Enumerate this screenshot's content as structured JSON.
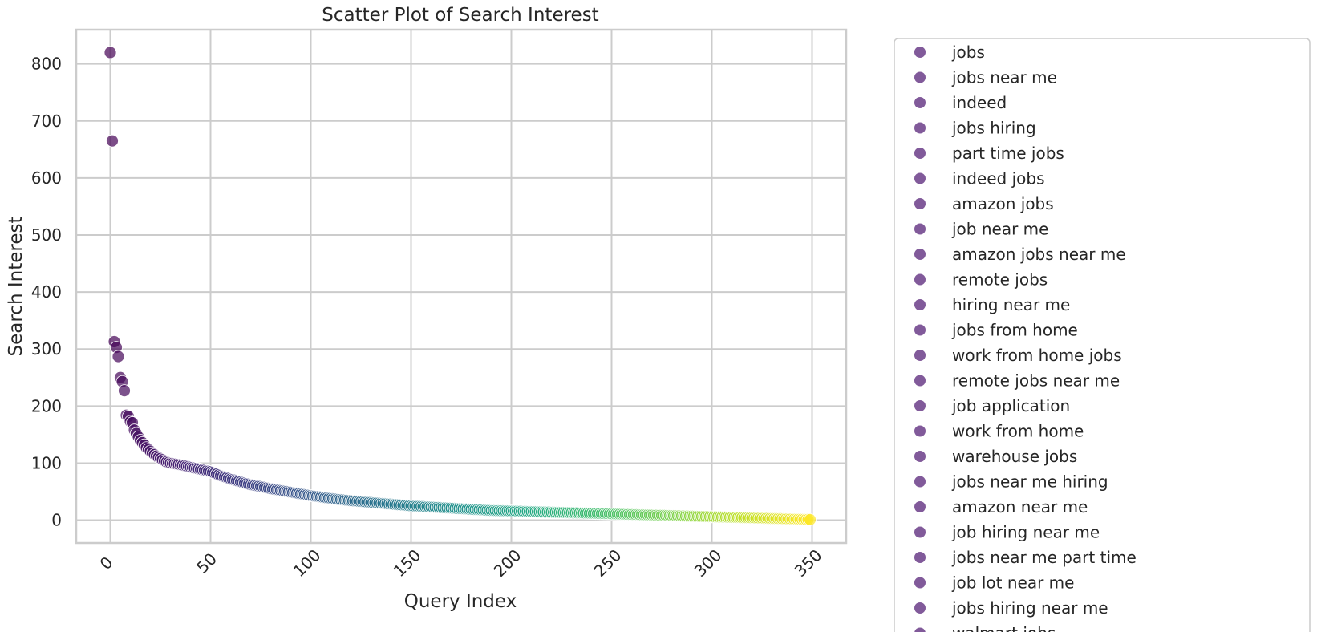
{
  "chart_data": {
    "type": "scatter",
    "title": "Scatter Plot of Search Interest",
    "xlabel": "Query Index",
    "ylabel": "Search Interest",
    "xlim": [
      -17,
      367
    ],
    "ylim": [
      -40,
      860
    ],
    "xticks": [
      0,
      50,
      100,
      150,
      200,
      250,
      300,
      350
    ],
    "yticks": [
      0,
      100,
      200,
      300,
      400,
      500,
      600,
      700,
      800
    ],
    "grid": true,
    "colormap": "viridis",
    "point_alpha": 0.7,
    "n_points": 350,
    "anchor_points": [
      [
        0,
        820
      ],
      [
        1,
        665
      ],
      [
        2,
        313
      ],
      [
        3,
        303
      ],
      [
        4,
        287
      ],
      [
        5,
        250
      ],
      [
        6,
        243
      ],
      [
        7,
        227
      ],
      [
        8,
        184
      ],
      [
        9,
        182
      ],
      [
        10,
        173
      ],
      [
        11,
        171
      ],
      [
        12,
        158
      ],
      [
        13,
        152
      ],
      [
        14,
        146
      ],
      [
        15,
        140
      ],
      [
        16,
        136
      ],
      [
        17,
        132
      ],
      [
        18,
        127
      ],
      [
        19,
        124
      ],
      [
        20,
        121
      ],
      [
        22,
        115
      ],
      [
        24,
        110
      ],
      [
        26,
        106
      ],
      [
        28,
        102
      ],
      [
        30,
        100
      ],
      [
        35,
        97
      ],
      [
        40,
        93
      ],
      [
        45,
        89
      ],
      [
        50,
        85
      ],
      [
        55,
        78
      ],
      [
        60,
        72
      ],
      [
        65,
        67
      ],
      [
        70,
        62
      ],
      [
        75,
        59
      ],
      [
        80,
        55
      ],
      [
        85,
        52
      ],
      [
        90,
        49
      ],
      [
        95,
        46
      ],
      [
        100,
        43
      ],
      [
        110,
        38
      ],
      [
        120,
        34
      ],
      [
        130,
        31
      ],
      [
        140,
        28
      ],
      [
        150,
        25
      ],
      [
        160,
        23
      ],
      [
        170,
        21
      ],
      [
        180,
        19
      ],
      [
        190,
        17
      ],
      [
        200,
        16
      ],
      [
        210,
        15
      ],
      [
        220,
        14
      ],
      [
        230,
        13
      ],
      [
        240,
        12
      ],
      [
        250,
        11
      ],
      [
        260,
        10
      ],
      [
        270,
        9
      ],
      [
        280,
        8
      ],
      [
        290,
        7
      ],
      [
        300,
        6
      ],
      [
        310,
        5
      ],
      [
        320,
        4
      ],
      [
        330,
        3
      ],
      [
        340,
        2
      ],
      [
        349,
        1
      ]
    ],
    "legend": {
      "position": "right",
      "marker_color": "#7a5195",
      "entries": [
        "jobs",
        "jobs near me",
        "indeed",
        "jobs hiring",
        "part time jobs",
        "indeed jobs",
        "amazon jobs",
        "job near me",
        "amazon jobs near me",
        "remote jobs",
        "hiring near me",
        "jobs from home",
        "work from home jobs",
        "remote jobs near me",
        "job application",
        "work from home",
        "warehouse jobs",
        "jobs near me hiring",
        "amazon near me",
        "job hiring near me",
        "jobs near me part time",
        "job lot near me",
        "jobs hiring near me",
        "walmart jobs"
      ]
    },
    "colors": {
      "grid": "#cccccc",
      "frame": "#cccccc",
      "text": "#262626"
    }
  }
}
